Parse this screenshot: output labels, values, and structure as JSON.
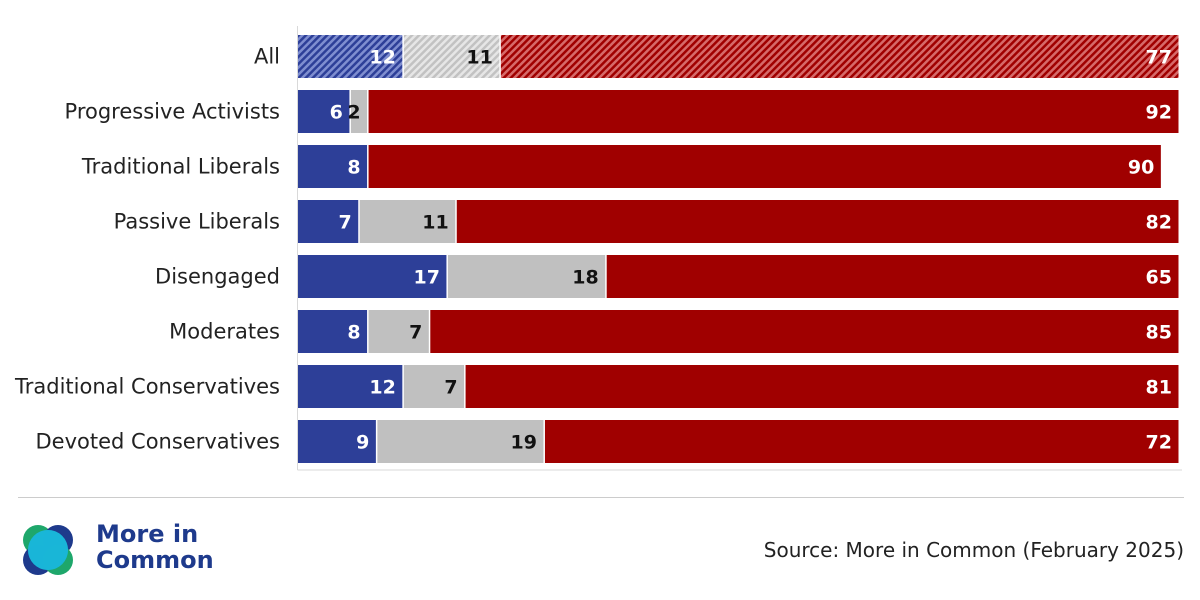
{
  "chart_data": {
    "type": "bar",
    "orientation": "horizontal",
    "stacked": true,
    "categories": [
      "All",
      "Progressive Activists",
      "Traditional Liberals",
      "Passive Liberals",
      "Disengaged",
      "Moderates",
      "Traditional Conservatives",
      "Devoted Conservatives"
    ],
    "series": [
      {
        "values": [
          12,
          6,
          8,
          7,
          17,
          8,
          12,
          9
        ],
        "color": "#2d3f98"
      },
      {
        "values": [
          11,
          2,
          0,
          11,
          18,
          7,
          7,
          19
        ],
        "color": "#c0c0c0"
      },
      {
        "values": [
          77,
          92,
          90,
          82,
          65,
          85,
          81,
          72
        ],
        "color": "#a00000"
      }
    ],
    "value_labels": [
      [
        "12",
        "11",
        "77"
      ],
      [
        "6",
        "2",
        "92"
      ],
      [
        "8",
        "",
        "90"
      ],
      [
        "7",
        "11",
        "82"
      ],
      [
        "17",
        "18",
        "65"
      ],
      [
        "8",
        "7",
        "85"
      ],
      [
        "12",
        "7",
        "81"
      ],
      [
        "9",
        "19",
        "72"
      ]
    ],
    "hatched_categories": [
      "All"
    ],
    "xlim": [
      0,
      100
    ],
    "grid": false,
    "legend": "none"
  },
  "footer": {
    "logo_line1": "More in",
    "logo_line2": "Common",
    "source": "Source: More in Common (February 2025)"
  },
  "logo_colors": [
    "#1e3a8c",
    "#19b6d8",
    "#1ea76b"
  ]
}
